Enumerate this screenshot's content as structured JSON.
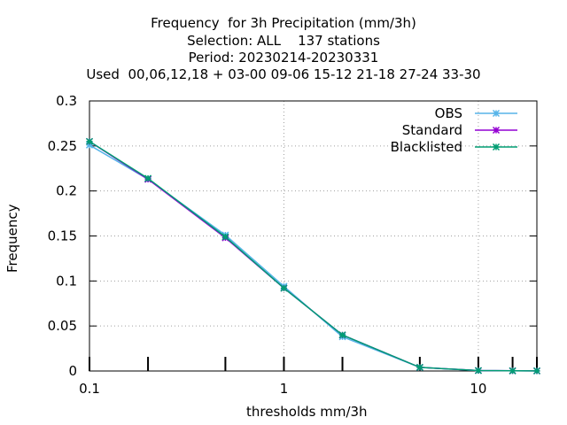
{
  "chart_data": {
    "type": "line",
    "title_lines": [
      "Frequency  for 3h Precipitation (mm/3h)",
      "Selection: ALL    137 stations",
      "Period: 20230214-20230331",
      "Used  00,06,12,18 + 03-00 09-06 15-12 21-18 27-24 33-30"
    ],
    "xlabel": "thresholds mm/3h",
    "ylabel": "Frequency",
    "x_scale": "log",
    "xlim": [
      0.1,
      20
    ],
    "ylim": [
      0,
      0.3
    ],
    "x_ticks": [
      "0.1",
      "1",
      "10"
    ],
    "y_ticks": [
      "0",
      "0.05",
      "0.1",
      "0.15",
      "0.2",
      "0.25",
      "0.3"
    ],
    "grid": true,
    "legend_position": "top-right",
    "x": [
      0.1,
      0.2,
      0.5,
      1,
      2,
      5,
      10,
      15,
      20
    ],
    "series": [
      {
        "name": "OBS",
        "color": "#56b4e9",
        "marker": "asterisk",
        "values": [
          0.251,
          0.213,
          0.151,
          0.094,
          0.038,
          0.004,
          0.0005,
          0.0002,
          0.0001
        ]
      },
      {
        "name": "Standard",
        "color": "#9400d3",
        "marker": "asterisk",
        "values": [
          0.255,
          0.213,
          0.148,
          0.092,
          0.04,
          0.004,
          0.0005,
          0.0002,
          0.0001
        ]
      },
      {
        "name": "Blacklisted",
        "color": "#009e73",
        "marker": "asterisk",
        "values": [
          0.255,
          0.214,
          0.149,
          0.092,
          0.04,
          0.004,
          0.0005,
          0.0002,
          0.0001
        ]
      }
    ]
  }
}
